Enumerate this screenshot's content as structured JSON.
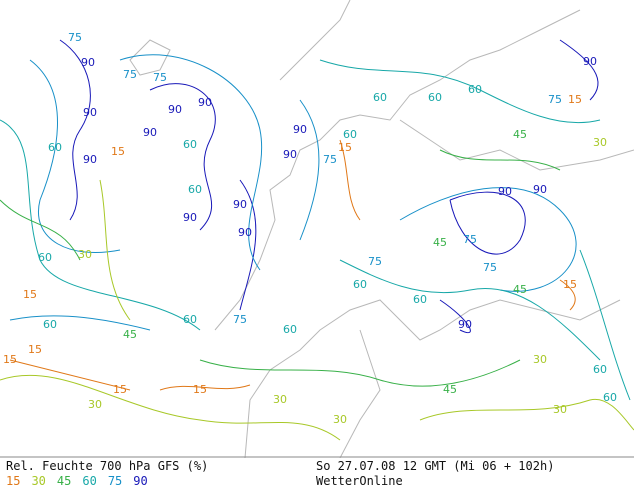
{
  "map": {
    "contour_labels": [
      90,
      75,
      75,
      75,
      90,
      90,
      90,
      90,
      60,
      90,
      15,
      60,
      60,
      90,
      90,
      90,
      90,
      90,
      75,
      15,
      60,
      60,
      60,
      60,
      45,
      75,
      15,
      90,
      30,
      90,
      90,
      75,
      75,
      45,
      75,
      60,
      60,
      90,
      45,
      15,
      60,
      60,
      30,
      60,
      15,
      15,
      15,
      30,
      30,
      60,
      75,
      45,
      30,
      30,
      30,
      60,
      45,
      60,
      15,
      15
    ]
  },
  "legend": {
    "title": "Rel. Feuchte 700 hPa GFS (%)",
    "levels": [
      {
        "value": 15,
        "color": "#e07818"
      },
      {
        "value": 30,
        "color": "#a8c828"
      },
      {
        "value": 45,
        "color": "#38b048"
      },
      {
        "value": 60,
        "color": "#18a8a8"
      },
      {
        "value": 75,
        "color": "#1890c8"
      },
      {
        "value": 90,
        "color": "#1818b8"
      }
    ]
  },
  "footer": {
    "valid_time": "So 27.07.08 12 GMT (Mi 06 + 102h)",
    "source": "WetterOnline"
  }
}
